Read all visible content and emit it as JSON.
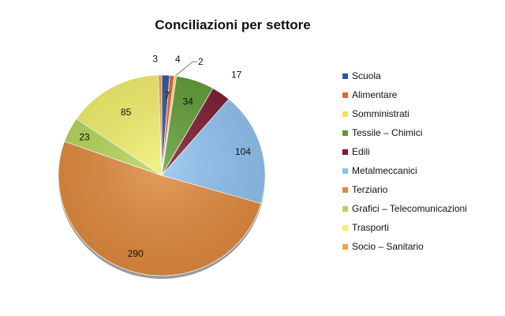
{
  "chart_data": {
    "type": "pie",
    "title": "Conciliazioni per settore",
    "legend_position": "right",
    "slices": [
      {
        "label": "Scuola",
        "value": 7,
        "color": "#2f5597"
      },
      {
        "label": "Alimentare",
        "value": 4,
        "color": "#e8612c"
      },
      {
        "label": "Somministrati",
        "value": 2,
        "color": "#f5de65"
      },
      {
        "label": "Tessile – Chimici",
        "value": 34,
        "color": "#5e9b35"
      },
      {
        "label": "Edili",
        "value": 17,
        "color": "#7a1a2f"
      },
      {
        "label": "Metalmeccanici",
        "value": 104,
        "color": "#8fc1ef"
      },
      {
        "label": "Terziario",
        "value": 290,
        "color": "#e08a3c"
      },
      {
        "label": "Grafici – Telecomunicazioni",
        "value": 23,
        "color": "#b5d65a"
      },
      {
        "label": "Trasporti",
        "value": 85,
        "color": "#f2ee6b"
      },
      {
        "label": "Socio – Sanitario",
        "value": 3,
        "color": "#f0a640"
      }
    ]
  }
}
